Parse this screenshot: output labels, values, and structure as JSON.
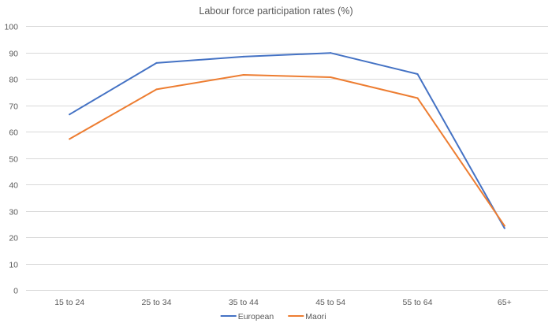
{
  "chart_data": {
    "type": "line",
    "title": "Labour force participation rates (%)",
    "categories": [
      "15 to 24",
      "25 to 34",
      "35 to 44",
      "45 to 54",
      "55 to 64",
      "65+"
    ],
    "series": [
      {
        "name": "European",
        "color": "#4472c4",
        "values": [
          66.5,
          86.0,
          88.4,
          89.8,
          81.8,
          23.4
        ]
      },
      {
        "name": "Maori",
        "color": "#ed7d31",
        "values": [
          57.2,
          76.0,
          81.5,
          80.6,
          72.7,
          24.3
        ]
      }
    ],
    "ylim": [
      0,
      100
    ],
    "yticks": [
      0,
      10,
      20,
      30,
      40,
      50,
      60,
      70,
      80,
      90,
      100
    ],
    "grid": true,
    "legend": "bottom",
    "xlabel": "",
    "ylabel": ""
  }
}
